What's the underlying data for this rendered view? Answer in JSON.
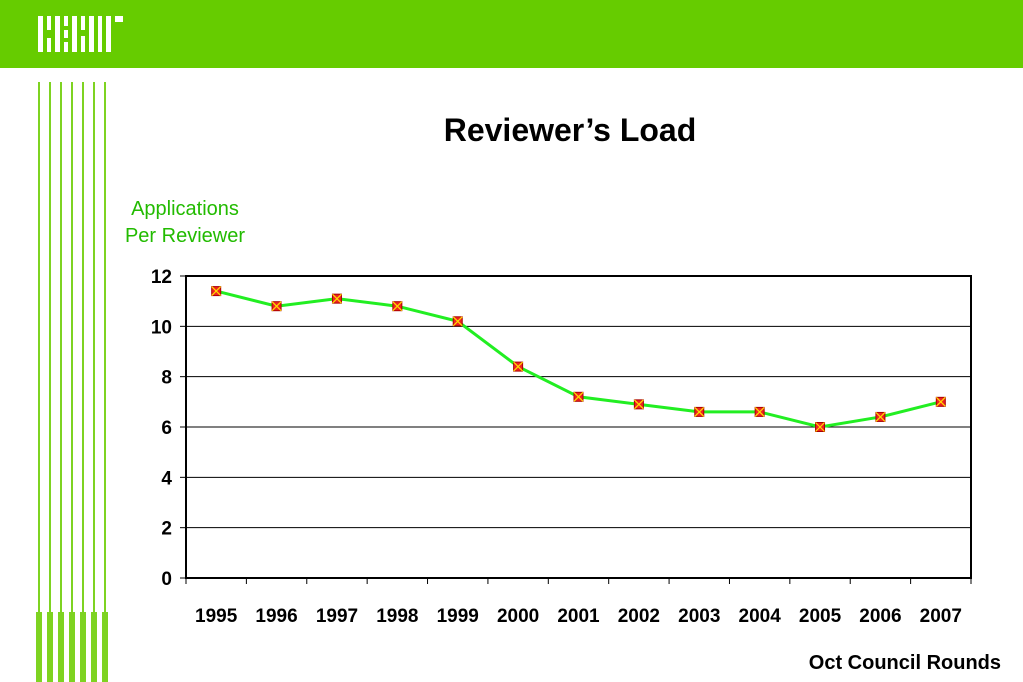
{
  "colors": {
    "header": "#66cc00",
    "stripe": "#7ed321",
    "line": "#22ee22",
    "marker": "#ee2222",
    "axis_label": "#22bb00"
  },
  "chart_data": {
    "type": "line",
    "title": "Reviewer’s Load",
    "ylabel": "Applications Per Reviewer",
    "ylabel_lines": [
      "Applications",
      "Per Reviewer"
    ],
    "xlabel": "Oct Council Rounds",
    "categories": [
      "1995",
      "1996",
      "1997",
      "1998",
      "1999",
      "2000",
      "2001",
      "2002",
      "2003",
      "2004",
      "2005",
      "2006",
      "2007"
    ],
    "values": [
      11.4,
      10.8,
      11.1,
      10.8,
      10.2,
      8.4,
      7.2,
      6.9,
      6.6,
      6.6,
      6.0,
      6.4,
      7.0
    ],
    "ylim": [
      0,
      12
    ],
    "yticks": [
      0,
      2,
      4,
      6,
      8,
      10,
      12
    ],
    "grid": true,
    "legend": false
  }
}
